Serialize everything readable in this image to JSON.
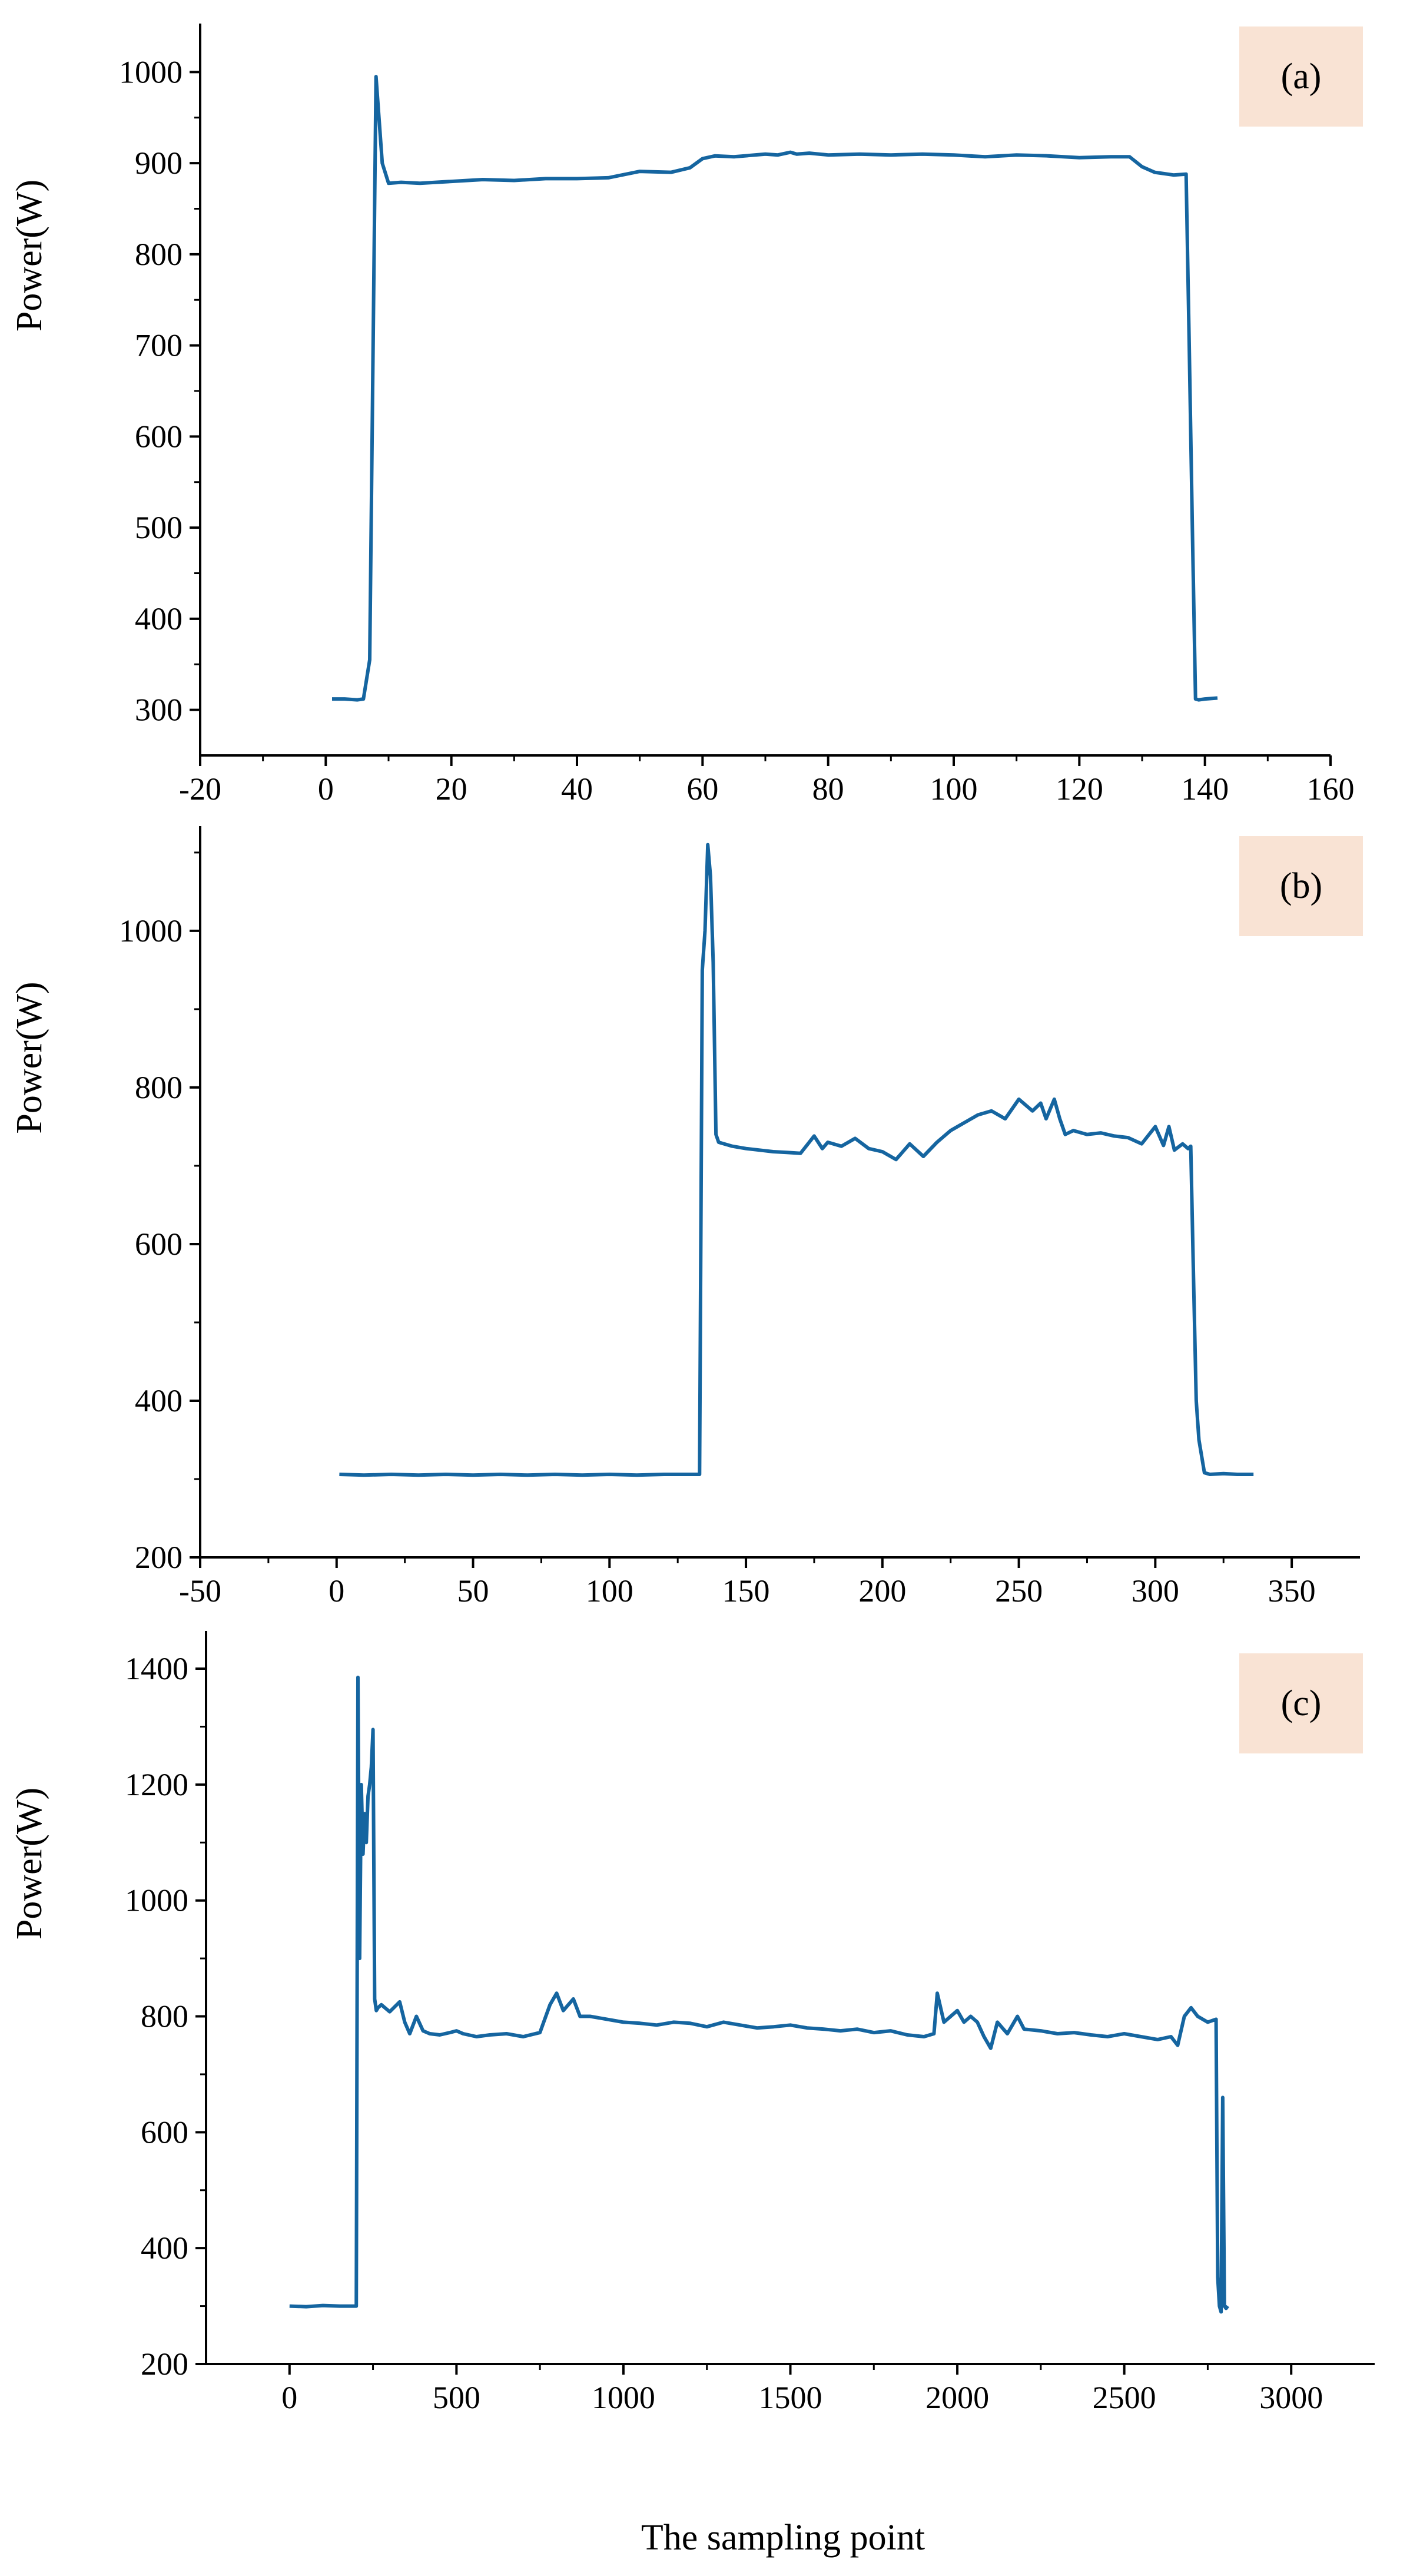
{
  "colors": {
    "line": "#1565a0",
    "axis": "#000000",
    "panel_label_bg": "#f9e3d4",
    "background": "#ffffff"
  },
  "figure": {
    "xlabel": "The sampling point"
  },
  "chart_data": [
    {
      "type": "line",
      "panel_label": "(a)",
      "ylabel": "Power(W)",
      "xlabel": "",
      "xlim": [
        -20,
        160
      ],
      "ylim": [
        250,
        1050
      ],
      "xticks": [
        -20,
        0,
        20,
        40,
        60,
        80,
        100,
        120,
        140,
        160
      ],
      "yticks": [
        300,
        400,
        500,
        600,
        700,
        800,
        900,
        1000
      ],
      "grid": false,
      "series": [
        {
          "x": [
            1,
            3,
            5,
            6,
            7,
            8,
            9,
            10,
            12,
            15,
            20,
            25,
            30,
            35,
            40,
            45,
            50,
            55,
            58,
            60,
            62,
            65,
            70,
            72,
            74,
            75,
            77,
            80,
            85,
            90,
            95,
            100,
            105,
            110,
            115,
            120,
            125,
            128,
            130,
            132,
            135,
            137,
            137.5,
            138,
            138.5,
            139,
            140,
            142
          ],
          "y": [
            312,
            312,
            311,
            312,
            355,
            995,
            900,
            878,
            879,
            878,
            880,
            882,
            881,
            883,
            883,
            884,
            891,
            890,
            895,
            905,
            908,
            907,
            910,
            909,
            912,
            910,
            911,
            909,
            910,
            909,
            910,
            909,
            907,
            909,
            908,
            906,
            907,
            907,
            896,
            890,
            887,
            888,
            700,
            500,
            312,
            311,
            312,
            313
          ]
        }
      ]
    },
    {
      "type": "line",
      "panel_label": "(b)",
      "ylabel": "Power(W)",
      "xlabel": "",
      "xlim": [
        -50,
        375
      ],
      "ylim": [
        200,
        1130
      ],
      "xticks": [
        -50,
        0,
        50,
        100,
        150,
        200,
        250,
        300,
        350
      ],
      "yticks": [
        200,
        400,
        600,
        800,
        1000
      ],
      "grid": false,
      "series": [
        {
          "x": [
            1,
            10,
            20,
            30,
            40,
            50,
            60,
            70,
            80,
            90,
            100,
            110,
            120,
            133,
            134,
            135,
            136,
            137,
            138,
            139,
            140,
            145,
            150,
            155,
            160,
            165,
            170,
            175,
            178,
            180,
            185,
            190,
            195,
            200,
            205,
            210,
            215,
            220,
            225,
            230,
            235,
            240,
            245,
            250,
            255,
            258,
            260,
            263,
            265,
            267,
            270,
            275,
            280,
            285,
            290,
            295,
            300,
            303,
            305,
            307,
            310,
            312,
            313,
            314,
            315,
            316,
            318,
            320,
            325,
            330,
            336
          ],
          "y": [
            306,
            305,
            306,
            305,
            306,
            305,
            306,
            305,
            306,
            305,
            306,
            305,
            306,
            306,
            950,
            1000,
            1110,
            1070,
            960,
            740,
            730,
            725,
            722,
            720,
            718,
            717,
            716,
            738,
            722,
            730,
            725,
            735,
            722,
            718,
            708,
            728,
            712,
            730,
            745,
            755,
            765,
            770,
            760,
            785,
            770,
            780,
            760,
            785,
            760,
            740,
            745,
            740,
            742,
            738,
            736,
            728,
            750,
            726,
            750,
            720,
            728,
            722,
            725,
            560,
            400,
            350,
            308,
            306,
            307,
            306,
            306
          ]
        }
      ]
    },
    {
      "type": "line",
      "panel_label": "(c)",
      "ylabel": "Power(W)",
      "xlabel": "The sampling point",
      "xlim": [
        -250,
        3250
      ],
      "ylim": [
        200,
        1460
      ],
      "xticks": [
        0,
        500,
        1000,
        1500,
        2000,
        2500,
        3000
      ],
      "yticks": [
        200,
        400,
        600,
        800,
        1000,
        1200,
        1400
      ],
      "grid": false,
      "series": [
        {
          "x": [
            0,
            50,
            100,
            150,
            200,
            205,
            210,
            215,
            220,
            225,
            230,
            235,
            240,
            245,
            250,
            255,
            260,
            265,
            275,
            300,
            330,
            345,
            360,
            380,
            400,
            420,
            450,
            480,
            500,
            520,
            560,
            600,
            650,
            700,
            750,
            780,
            800,
            820,
            850,
            870,
            900,
            950,
            1000,
            1050,
            1100,
            1150,
            1200,
            1250,
            1300,
            1350,
            1400,
            1450,
            1500,
            1550,
            1600,
            1650,
            1700,
            1750,
            1800,
            1850,
            1900,
            1930,
            1940,
            1960,
            2000,
            2020,
            2040,
            2060,
            2080,
            2100,
            2120,
            2150,
            2180,
            2200,
            2250,
            2300,
            2350,
            2400,
            2450,
            2500,
            2550,
            2600,
            2640,
            2660,
            2680,
            2700,
            2720,
            2750,
            2775,
            2780,
            2785,
            2790,
            2795,
            2800,
            2805,
            2810
          ],
          "y": [
            300,
            299,
            301,
            300,
            300,
            1385,
            900,
            1200,
            1080,
            1150,
            1100,
            1180,
            1200,
            1230,
            1295,
            830,
            810,
            815,
            820,
            808,
            825,
            790,
            770,
            800,
            775,
            770,
            768,
            772,
            775,
            770,
            765,
            768,
            770,
            765,
            772,
            820,
            840,
            810,
            830,
            800,
            800,
            795,
            790,
            788,
            785,
            790,
            788,
            782,
            790,
            785,
            780,
            782,
            785,
            780,
            778,
            775,
            778,
            772,
            775,
            768,
            765,
            770,
            840,
            790,
            810,
            790,
            800,
            790,
            765,
            745,
            790,
            770,
            800,
            778,
            775,
            770,
            772,
            768,
            765,
            770,
            765,
            760,
            765,
            750,
            800,
            815,
            800,
            790,
            795,
            350,
            300,
            290,
            660,
            300,
            296,
            300
          ]
        }
      ]
    }
  ]
}
